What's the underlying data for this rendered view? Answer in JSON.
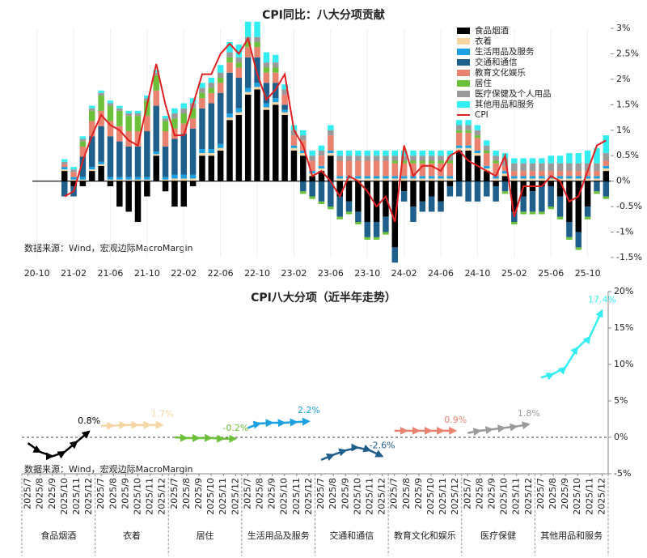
{
  "chart_data": [
    {
      "type": "bar",
      "stacked": true,
      "title": "CPI同比：八大分项贡献",
      "source": "数据来源：Wind，宏观边际MacroMargin",
      "legend": "upper right",
      "categories": [
        "20-10",
        null,
        null,
        null,
        "21-02",
        null,
        null,
        null,
        "21-06",
        null,
        null,
        null,
        "21-10",
        null,
        null,
        null,
        "22-02",
        null,
        null,
        null,
        "22-06",
        null,
        null,
        null,
        "22-10",
        null,
        null,
        null,
        "23-02",
        null,
        null,
        null,
        "23-06",
        null,
        null,
        null,
        "23-10",
        null,
        null,
        null,
        "24-02",
        null,
        null,
        null,
        "24-06",
        null,
        null,
        null,
        "24-10",
        null,
        null,
        null,
        "25-02",
        null,
        null,
        null,
        "25-06",
        null,
        null,
        null,
        "25-10",
        null,
        null
      ],
      "ylim": [
        -1.5,
        3
      ],
      "yticks": [
        {
          "value": 3,
          "label": "3%"
        },
        {
          "value": 2.5,
          "label": "2.5%"
        },
        {
          "value": 2,
          "label": "2%"
        },
        {
          "value": 1.5,
          "label": "1.5%"
        },
        {
          "value": 1,
          "label": "1%"
        },
        {
          "value": 0.5,
          "label": "0.5%"
        },
        {
          "value": 0,
          "label": "0%"
        },
        {
          "value": -0.5,
          "label": "-0.5%"
        },
        {
          "value": -1,
          "label": "-1%"
        },
        {
          "value": -1.5,
          "label": "-1.5%"
        }
      ],
      "series": [
        {
          "name": "食品烟酒",
          "color": "#000000",
          "values": [
            null,
            null,
            null,
            0.2,
            -0.1,
            -0.1,
            0.2,
            0.3,
            -0.1,
            -0.5,
            -0.6,
            -0.8,
            -0.3,
            0.5,
            -0.2,
            -0.5,
            -0.5,
            -0.1,
            0.5,
            0.5,
            0.6,
            1.2,
            1.3,
            1.7,
            1.8,
            1.4,
            1.5,
            1.3,
            0.6,
            0.5,
            0.1,
            0.2,
            0.5,
            -0.3,
            -0.4,
            -0.6,
            -0.8,
            -0.8,
            -0.7,
            -1.3,
            -0.2,
            -0.5,
            -0.4,
            -0.3,
            -0.4,
            -0.1,
            0.6,
            0.6,
            0.5,
            0.2,
            -0.1,
            0.1,
            -0.6,
            -0.3,
            -0.2,
            -0.1,
            -0.1,
            -0.3,
            -0.8,
            -1.0,
            -0.5,
            0,
            0.2
          ]
        },
        {
          "name": "衣着",
          "color": "#f6d5a2",
          "values": [
            null,
            null,
            null,
            0.03,
            0.03,
            0.03,
            0.03,
            0.03,
            0.03,
            0.03,
            0.03,
            0.03,
            0.03,
            0.03,
            0.03,
            0.05,
            0.05,
            0.05,
            0.05,
            0.05,
            0.05,
            0.05,
            0.05,
            0.05,
            0.05,
            0.05,
            0.05,
            0.05,
            0.05,
            0.05,
            0.05,
            0.05,
            0.05,
            0.05,
            0.05,
            0.05,
            0.05,
            0.05,
            0.05,
            0.05,
            0.05,
            0.05,
            0.05,
            0.05,
            0.05,
            0.05,
            0.05,
            0.05,
            0.05,
            0.05,
            0.05,
            0.05,
            0.05,
            0.05,
            0.05,
            0.05,
            0.05,
            0.05,
            0.05,
            0.05,
            0.05,
            0.05,
            0.05
          ]
        },
        {
          "name": "生活用品及服务",
          "color": "#1ba1e2",
          "values": [
            null,
            null,
            null,
            0.05,
            0.05,
            0.05,
            0.05,
            0.05,
            0.05,
            0.05,
            0.05,
            0.05,
            0.05,
            0.05,
            0.05,
            0.08,
            0.08,
            0.08,
            0.08,
            0.08,
            0.08,
            0.08,
            0.08,
            0.08,
            0.08,
            0.08,
            0.08,
            0.05,
            0.05,
            0.05,
            0.05,
            0.05,
            0.05,
            0.05,
            0.05,
            0.05,
            0.05,
            0.05,
            0.05,
            0.05,
            0.05,
            0.05,
            0.05,
            0.05,
            0.05,
            0.05,
            0.05,
            0.05,
            0.05,
            0.05,
            0.05,
            0.05,
            0.05,
            0.05,
            0.05,
            0.05,
            0.05,
            0.05,
            0.05,
            0.05,
            0.05,
            0.05,
            0.05
          ]
        },
        {
          "name": "交通和通信",
          "color": "#1f5f8b",
          "values": [
            null,
            null,
            null,
            -0.3,
            -0.2,
            0.4,
            0.6,
            0.7,
            0.8,
            0.7,
            0.6,
            0.6,
            0.9,
            0.9,
            0.6,
            0.7,
            0.8,
            0.9,
            0.8,
            0.9,
            1.0,
            0.8,
            0.6,
            0.6,
            0.5,
            0.4,
            0.3,
            0.1,
            0,
            -0.2,
            -0.3,
            -0.4,
            -0.5,
            -0.4,
            -0.2,
            -0.2,
            -0.3,
            -0.3,
            -0.3,
            -0.3,
            -0.2,
            -0.3,
            -0.2,
            -0.3,
            -0.2,
            -0.2,
            -0.3,
            -0.4,
            -0.4,
            -0.3,
            -0.3,
            -0.2,
            -0.2,
            -0.3,
            -0.4,
            -0.5,
            -0.4,
            -0.4,
            -0.3,
            -0.3,
            -0.2,
            -0.2,
            -0.3
          ]
        },
        {
          "name": "教育文化娱乐",
          "color": "#ea8270",
          "values": [
            null,
            null,
            null,
            0.05,
            0.1,
            0.2,
            0.3,
            0.3,
            0.3,
            0.3,
            0.3,
            0.3,
            0.3,
            0.3,
            0.3,
            0.2,
            0.2,
            0.2,
            0.2,
            0.2,
            0.2,
            0.2,
            0.2,
            0.2,
            0.2,
            0.2,
            0.2,
            0.2,
            0.2,
            0.2,
            0.2,
            0.2,
            0.3,
            0.3,
            0.3,
            0.3,
            0.3,
            0.3,
            0.3,
            0.25,
            0.25,
            0.25,
            0.25,
            0.25,
            0.25,
            0.25,
            0.25,
            0.25,
            0.25,
            0.25,
            0.25,
            0.1,
            0.1,
            0.1,
            0.1,
            0.1,
            0.1,
            0.1,
            0.1,
            0.1,
            0.1,
            0.1,
            0.1
          ]
        },
        {
          "name": "居住",
          "color": "#6cc03a",
          "values": [
            null,
            null,
            null,
            0,
            0,
            0.1,
            0.2,
            0.3,
            0.3,
            0.3,
            0.3,
            0.3,
            0.3,
            0.3,
            0.2,
            0.2,
            0.2,
            0.2,
            0.1,
            0.1,
            0.1,
            0.1,
            0.1,
            0.1,
            0.1,
            0.1,
            0.1,
            0,
            0,
            -0.05,
            -0.05,
            -0.05,
            -0.05,
            -0.05,
            -0.05,
            -0.05,
            -0.05,
            -0.05,
            -0.05,
            0.05,
            0.05,
            0.05,
            0.05,
            0.05,
            0.05,
            0.05,
            0.05,
            0.05,
            0.05,
            0.05,
            0.05,
            -0.05,
            -0.05,
            -0.05,
            -0.05,
            -0.05,
            -0.05,
            -0.05,
            -0.05,
            -0.05,
            -0.05,
            -0.05,
            -0.05
          ]
        },
        {
          "name": "医疗保健及个人用品",
          "color": "#9a9a9a",
          "values": [
            null,
            null,
            null,
            0.05,
            0.05,
            0.05,
            0.05,
            0.05,
            0.05,
            0.05,
            0.05,
            0.05,
            0.05,
            0.05,
            0.05,
            0.1,
            0.1,
            0.1,
            0.1,
            0.1,
            0.1,
            0.1,
            0.1,
            0.1,
            0.1,
            0.1,
            0.1,
            0.1,
            0.1,
            0.1,
            0.1,
            0.1,
            0.1,
            0.1,
            0.1,
            0.1,
            0.1,
            0.1,
            0.1,
            0.1,
            0.1,
            0.1,
            0.1,
            0.1,
            0.1,
            0.1,
            0.1,
            0.1,
            0.1,
            0.1,
            0.1,
            0.15,
            0.15,
            0.15,
            0.15,
            0.15,
            0.15,
            0.15,
            0.15,
            0.15,
            0.15,
            0.15,
            0.15
          ]
        },
        {
          "name": "其他用品和服务",
          "color": "#33eef0",
          "values": [
            null,
            null,
            null,
            0.05,
            0.05,
            0.05,
            0.05,
            0.05,
            0.05,
            0.05,
            0.05,
            0.05,
            0.05,
            0.05,
            0.05,
            0.1,
            0.1,
            0.1,
            0.1,
            0.1,
            0.15,
            0.2,
            0.25,
            0.3,
            0.3,
            0.2,
            0.15,
            0.1,
            0.1,
            0.1,
            0.1,
            0.1,
            0.1,
            0.1,
            0.1,
            0.1,
            0.1,
            0.1,
            0.1,
            0.1,
            0.1,
            0.1,
            0.1,
            0.1,
            0.1,
            0.1,
            0.1,
            0.1,
            0.1,
            0.1,
            0.1,
            0.1,
            0.1,
            0.1,
            0.1,
            0.1,
            0.15,
            0.15,
            0.2,
            0.2,
            0.25,
            0.3,
            0.35
          ]
        },
        {
          "name": "CPI",
          "type": "line",
          "color": "#e02020",
          "values": [
            null,
            null,
            null,
            -0.3,
            -0.2,
            0.4,
            0.9,
            1.3,
            1.1,
            1.0,
            0.8,
            0.7,
            1.5,
            2.3,
            1.5,
            0.9,
            0.9,
            1.5,
            2.1,
            2.1,
            2.5,
            2.7,
            2.5,
            2.8,
            2.1,
            1.6,
            1.8,
            2.1,
            1.0,
            0.7,
            0.1,
            0.2,
            0,
            -0.3,
            0.1,
            0,
            -0.2,
            -0.5,
            -0.3,
            -0.8,
            0.7,
            0.1,
            0.3,
            0.3,
            0.2,
            0.5,
            0.6,
            0.4,
            0.3,
            0.2,
            0.1,
            0.5,
            -0.7,
            -0.1,
            -0.1,
            -0.1,
            0.1,
            0,
            -0.4,
            -0.3,
            0.2,
            0.7,
            0.8
          ]
        }
      ]
    },
    {
      "type": "panel_line",
      "title": "CPI八大分项（近半年走势）",
      "source": "数据来源：Wind，宏观边际MacroMargin",
      "categories": [
        "2025/7",
        "2025/8",
        "2025/9",
        "2025/10",
        "2025/11",
        "2025/12"
      ],
      "ylim": [
        -5,
        20
      ],
      "yticks": [
        {
          "value": 20,
          "label": "20%"
        },
        {
          "value": 15,
          "label": "15%"
        },
        {
          "value": 10,
          "label": "10%"
        },
        {
          "value": 5,
          "label": "5%"
        },
        {
          "value": 0,
          "label": "0%"
        },
        {
          "value": -5,
          "label": "-5%"
        }
      ],
      "series": [
        {
          "name": "食品烟酒",
          "color": "#000000",
          "values": [
            -0.8,
            -2.0,
            -2.6,
            -2.0,
            -0.6,
            0.8
          ],
          "value_labels": [
            null,
            null,
            null,
            null,
            null,
            "0.8%"
          ]
        },
        {
          "name": "衣着",
          "color": "#f6d5a2",
          "values": [
            1.6,
            1.6,
            1.7,
            1.7,
            1.7,
            1.7
          ],
          "value_labels": [
            null,
            null,
            null,
            null,
            null,
            "1.7%"
          ]
        },
        {
          "name": "居住",
          "color": "#6cc03a",
          "values": [
            0,
            -0.1,
            -0.1,
            -0.1,
            -0.2,
            -0.2
          ],
          "value_labels": [
            null,
            null,
            null,
            null,
            null,
            "-0.2%"
          ]
        },
        {
          "name": "生活用品及服务",
          "color": "#1ba1e2",
          "values": [
            1.3,
            1.9,
            2.0,
            2.0,
            2.1,
            2.2
          ],
          "value_labels": [
            null,
            null,
            null,
            null,
            null,
            "2.2%"
          ]
        },
        {
          "name": "交通和通信",
          "color": "#1f5f8b",
          "values": [
            -3.1,
            -2.4,
            -1.8,
            -1.4,
            -1.8,
            -2.6
          ],
          "value_labels": [
            null,
            null,
            null,
            null,
            null,
            "-2.6%"
          ]
        },
        {
          "name": "教育文化和娱乐",
          "color": "#ea8270",
          "values": [
            0.9,
            0.9,
            0.9,
            0.9,
            0.9,
            0.9
          ],
          "value_labels": [
            null,
            null,
            null,
            null,
            null,
            "0.9%"
          ]
        },
        {
          "name": "医疗保健",
          "color": "#9a9a9a",
          "values": [
            0.6,
            0.9,
            1.1,
            1.3,
            1.5,
            1.8
          ],
          "value_labels": [
            null,
            null,
            null,
            null,
            null,
            "1.8%"
          ]
        },
        {
          "name": "其他用品和服务",
          "color": "#33eef0",
          "values": [
            8.2,
            8.7,
            9.6,
            12.3,
            13.8,
            17.4
          ],
          "value_labels": [
            null,
            null,
            null,
            null,
            null,
            "17.4%"
          ]
        }
      ]
    }
  ]
}
